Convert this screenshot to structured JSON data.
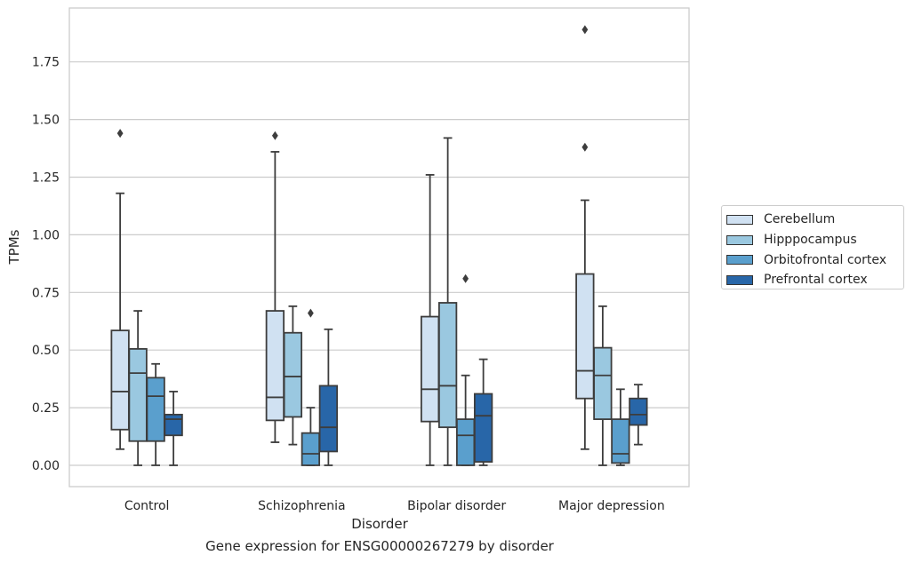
{
  "caption": "Gene expression for ENSG00000267279 by disorder",
  "chart_data": {
    "type": "box",
    "title": "",
    "xlabel": "Disorder",
    "ylabel": "TPMs",
    "ylim": [
      -0.09,
      1.99
    ],
    "yticks": [
      0.0,
      0.25,
      0.5,
      0.75,
      1.0,
      1.25,
      1.5,
      1.75
    ],
    "ytick_labels": [
      "0.00",
      "0.25",
      "0.50",
      "0.75",
      "1.00",
      "1.25",
      "1.50",
      "1.75"
    ],
    "grid": true,
    "legend_position": "outside-right",
    "categories": [
      "Control",
      "Schizophrenia",
      "Bipolar disorder",
      "Major depression"
    ],
    "series": [
      {
        "name": "Cerebellum",
        "color": "#d0e1f2",
        "boxes": [
          {
            "whisker_low": 0.07,
            "q1": 0.155,
            "median": 0.32,
            "q3": 0.585,
            "whisker_high": 1.18,
            "outliers": [
              1.44
            ]
          },
          {
            "whisker_low": 0.1,
            "q1": 0.195,
            "median": 0.295,
            "q3": 0.67,
            "whisker_high": 1.36,
            "outliers": [
              1.43
            ]
          },
          {
            "whisker_low": 0.0,
            "q1": 0.19,
            "median": 0.33,
            "q3": 0.645,
            "whisker_high": 1.26,
            "outliers": []
          },
          {
            "whisker_low": 0.07,
            "q1": 0.29,
            "median": 0.41,
            "q3": 0.83,
            "whisker_high": 1.15,
            "outliers": [
              1.38,
              1.89
            ]
          }
        ]
      },
      {
        "name": "Hipppocampus",
        "color": "#9ac8e0",
        "boxes": [
          {
            "whisker_low": 0.0,
            "q1": 0.105,
            "median": 0.4,
            "q3": 0.505,
            "whisker_high": 0.67,
            "outliers": []
          },
          {
            "whisker_low": 0.09,
            "q1": 0.21,
            "median": 0.385,
            "q3": 0.575,
            "whisker_high": 0.69,
            "outliers": []
          },
          {
            "whisker_low": 0.0,
            "q1": 0.165,
            "median": 0.345,
            "q3": 0.705,
            "whisker_high": 1.42,
            "outliers": []
          },
          {
            "whisker_low": 0.0,
            "q1": 0.2,
            "median": 0.39,
            "q3": 0.51,
            "whisker_high": 0.69,
            "outliers": []
          }
        ]
      },
      {
        "name": "Orbitofrontal cortex",
        "color": "#5a9fcd",
        "boxes": [
          {
            "whisker_low": 0.0,
            "q1": 0.105,
            "median": 0.3,
            "q3": 0.38,
            "whisker_high": 0.44,
            "outliers": []
          },
          {
            "whisker_low": 0.0,
            "q1": 0.0,
            "median": 0.05,
            "q3": 0.14,
            "whisker_high": 0.25,
            "outliers": [
              0.66
            ]
          },
          {
            "whisker_low": 0.0,
            "q1": 0.0,
            "median": 0.13,
            "q3": 0.2,
            "whisker_high": 0.39,
            "outliers": [
              0.81
            ]
          },
          {
            "whisker_low": 0.0,
            "q1": 0.01,
            "median": 0.05,
            "q3": 0.2,
            "whisker_high": 0.33,
            "outliers": []
          }
        ]
      },
      {
        "name": "Prefrontal cortex",
        "color": "#2866a8",
        "boxes": [
          {
            "whisker_low": 0.0,
            "q1": 0.13,
            "median": 0.2,
            "q3": 0.22,
            "whisker_high": 0.32,
            "outliers": []
          },
          {
            "whisker_low": 0.0,
            "q1": 0.06,
            "median": 0.165,
            "q3": 0.345,
            "whisker_high": 0.59,
            "outliers": []
          },
          {
            "whisker_low": 0.0,
            "q1": 0.015,
            "median": 0.215,
            "q3": 0.31,
            "whisker_high": 0.46,
            "outliers": []
          },
          {
            "whisker_low": 0.09,
            "q1": 0.175,
            "median": 0.22,
            "q3": 0.29,
            "whisker_high": 0.35,
            "outliers": []
          }
        ]
      }
    ]
  }
}
